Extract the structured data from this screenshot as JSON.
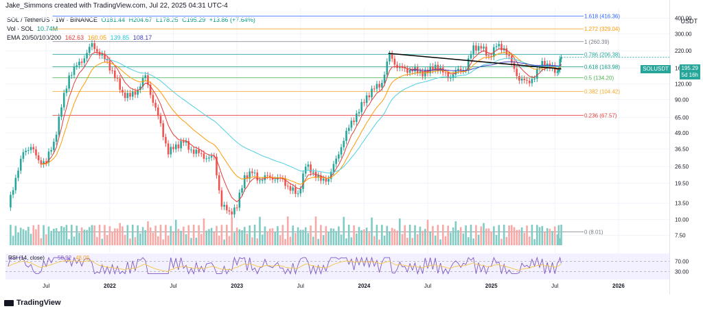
{
  "header": {
    "author": "Jake_Simmons created with TradingView.com, Jul 22, 2025 04:31 UTC-4",
    "currency": "USDT"
  },
  "legend": {
    "symbol": "SOL / TetherUS · 1W · BINANCE",
    "ohlc": [
      "O181.44",
      "H204.67",
      "L178.25",
      "C195.29",
      "+13.86 (+7.64%)"
    ],
    "vol_label": "Vol · SOL",
    "vol_value": "10.74M",
    "ema_label": "EMA 20/50/100/200",
    "ema_values": [
      "162.63",
      "160.05",
      "139.85",
      "108.17"
    ]
  },
  "colors": {
    "up": "#26a69a",
    "down": "#ef5350",
    "ema20": "#e53935",
    "ema50": "#ff9800",
    "ema100": "#4dd0e1",
    "ema200": "#3f3fbf"
  },
  "price_tag": {
    "symbol": "SOLUSDT",
    "price": "195.29",
    "countdown": "5d 16h"
  },
  "logo": "TradingView",
  "chart_data": {
    "type": "candlestick",
    "scale": "log",
    "title": "SOL / TetherUS · 1W · BINANCE",
    "y_ticks": [
      "400.00",
      "300.00",
      "220.00",
      "160.00",
      "120.00",
      "90.00",
      "65.00",
      "49.00",
      "36.50",
      "26.50",
      "19.50",
      "13.50",
      "10.00",
      "7.50"
    ],
    "y_tick_values": [
      400,
      300,
      220,
      160,
      120,
      90,
      65,
      49,
      36.5,
      26.5,
      19.5,
      13.5,
      10,
      7.5
    ],
    "ylim": [
      6.5,
      480
    ],
    "x_ticks": [
      "Jul",
      "2022",
      "Jul",
      "2023",
      "Jul",
      "2024",
      "Jul",
      "2025",
      "Jul",
      "2026"
    ],
    "x_tick_dates": [
      2021.5,
      2022.0,
      2022.5,
      2023.0,
      2023.5,
      2024.0,
      2024.5,
      2025.0,
      2025.5,
      2026.0
    ],
    "xlim": [
      2021.18,
      2026.4
    ],
    "fib_levels": [
      {
        "label": "1.618 (416.36)",
        "value": 416.36,
        "color": "#2962ff"
      },
      {
        "label": "1.272 (329.04)",
        "value": 329.04,
        "color": "#ff9800"
      },
      {
        "label": "1 (260.39)",
        "value": 260.39,
        "color": "#787b86"
      },
      {
        "label": "0.786 (206.38)",
        "value": 206.38,
        "color": "#26a69a"
      },
      {
        "label": "0.618 (163.98)",
        "value": 163.98,
        "color": "#089981"
      },
      {
        "label": "0.5 (134.20)",
        "value": 134.2,
        "color": "#4caf50"
      },
      {
        "label": "0.382 (104.42)",
        "value": 104.42,
        "color": "#f5a623"
      },
      {
        "label": "0.236 (67.57)",
        "value": 67.57,
        "color": "#e53935"
      },
      {
        "label": "0 (8.01)",
        "value": 8.01,
        "color": "#787b86"
      }
    ],
    "trendline": {
      "from": [
        2024.19,
        210
      ],
      "to": [
        2025.55,
        158
      ]
    },
    "weekly_close": [
      [
        2021.2,
        12.5
      ],
      [
        2021.26,
        22
      ],
      [
        2021.32,
        33
      ],
      [
        2021.38,
        40
      ],
      [
        2021.44,
        28
      ],
      [
        2021.5,
        30
      ],
      [
        2021.56,
        40
      ],
      [
        2021.62,
        80
      ],
      [
        2021.68,
        140
      ],
      [
        2021.74,
        165
      ],
      [
        2021.8,
        200
      ],
      [
        2021.86,
        240
      ],
      [
        2021.92,
        215
      ],
      [
        2021.98,
        175
      ],
      [
        2022.04,
        140
      ],
      [
        2022.1,
        100
      ],
      [
        2022.16,
        95
      ],
      [
        2022.22,
        110
      ],
      [
        2022.28,
        135
      ],
      [
        2022.34,
        90
      ],
      [
        2022.4,
        55
      ],
      [
        2022.46,
        35
      ],
      [
        2022.52,
        38
      ],
      [
        2022.58,
        42
      ],
      [
        2022.64,
        36
      ],
      [
        2022.7,
        33
      ],
      [
        2022.76,
        32
      ],
      [
        2022.82,
        30
      ],
      [
        2022.88,
        13.5
      ],
      [
        2022.94,
        11
      ],
      [
        2023.0,
        13
      ],
      [
        2023.06,
        22
      ],
      [
        2023.12,
        23.5
      ],
      [
        2023.18,
        21
      ],
      [
        2023.24,
        21.5
      ],
      [
        2023.3,
        22
      ],
      [
        2023.36,
        20
      ],
      [
        2023.42,
        18
      ],
      [
        2023.48,
        15.5
      ],
      [
        2023.54,
        27
      ],
      [
        2023.6,
        24
      ],
      [
        2023.66,
        20
      ],
      [
        2023.72,
        22
      ],
      [
        2023.78,
        29
      ],
      [
        2023.84,
        45
      ],
      [
        2023.9,
        58
      ],
      [
        2023.96,
        75
      ],
      [
        2024.02,
        95
      ],
      [
        2024.08,
        110
      ],
      [
        2024.14,
        125
      ],
      [
        2024.2,
        200
      ],
      [
        2024.26,
        170
      ],
      [
        2024.32,
        150
      ],
      [
        2024.38,
        160
      ],
      [
        2024.44,
        145
      ],
      [
        2024.5,
        150
      ],
      [
        2024.56,
        170
      ],
      [
        2024.62,
        145
      ],
      [
        2024.68,
        140
      ],
      [
        2024.74,
        150
      ],
      [
        2024.8,
        165
      ],
      [
        2024.86,
        230
      ],
      [
        2024.92,
        240
      ],
      [
        2024.98,
        195
      ],
      [
        2025.04,
        240
      ],
      [
        2025.1,
        235
      ],
      [
        2025.16,
        170
      ],
      [
        2025.22,
        135
      ],
      [
        2025.28,
        120
      ],
      [
        2025.34,
        140
      ],
      [
        2025.4,
        175
      ],
      [
        2025.46,
        165
      ],
      [
        2025.52,
        150
      ],
      [
        2025.55,
        195.29
      ]
    ],
    "series": [
      {
        "name": "EMA 20",
        "value": 162.63
      },
      {
        "name": "EMA 50",
        "value": 160.05
      },
      {
        "name": "EMA 100",
        "value": 139.85
      },
      {
        "name": "EMA 200",
        "value": 108.17
      }
    ],
    "rsi": {
      "label": "RSI (14, close)",
      "value": "58.92",
      "value2": "48.09",
      "levels": [
        "70.00",
        "30.00"
      ],
      "level_values": [
        70,
        30
      ],
      "upper_band": 70,
      "lower_band": 30
    }
  }
}
